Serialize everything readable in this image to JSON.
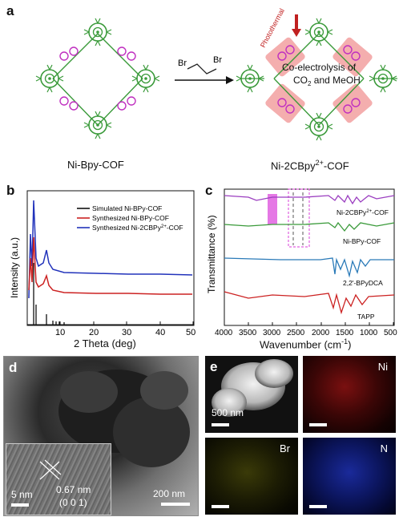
{
  "panel_a": {
    "label": "a",
    "left_name": "Ni-Bpy-COF",
    "right_name_main": "Ni-2CBpy",
    "right_name_sup": "2+",
    "right_name_tail": "-COF",
    "reagent_br1": "Br",
    "reagent_br2": "Br",
    "photothermal": "Photothermal",
    "process_line1": "Co-electrolysis of",
    "process_line2_a": "CO",
    "process_line2_sub": "2",
    "process_line2_b": " and MeOH",
    "colors": {
      "porphyrin": "#3a9a3a",
      "bipyridine": "#c030c0",
      "highlight": "#f2a0a0",
      "arrow": "#c02020"
    }
  },
  "panel_b": {
    "label": "b",
    "ylabel": "Intensity (a.u.)",
    "xlabel": "2 Theta (deg)",
    "xticks": [
      "10",
      "20",
      "30",
      "40",
      "50"
    ],
    "legend": [
      {
        "name": "Simulated Ni-BPy-COF",
        "color": "#111111"
      },
      {
        "name": "Synthesized Ni-BPy-COF",
        "color": "#cc2222"
      },
      {
        "name": "Synthesized Ni-2CBPy",
        "sup": "2+",
        "tail": "-COF",
        "color": "#2233bb"
      }
    ]
  },
  "panel_c": {
    "label": "c",
    "ylabel": "Transmittance (%)",
    "xlabel_main": "Wavenumber (cm",
    "xlabel_sup": "-1",
    "xlabel_tail": ")",
    "xticks": [
      "4000",
      "3500",
      "3000",
      "2500",
      "2000",
      "1500",
      "1000",
      "500"
    ],
    "traces": [
      {
        "name": "Ni-2CBPy",
        "sup": "2+",
        "tail": "-COF",
        "color": "#9b3ec0"
      },
      {
        "name": "Ni-BPy-COF",
        "color": "#3a9a3a"
      },
      {
        "name": "2,2'-BPyDCA",
        "color": "#2a7ab8"
      },
      {
        "name": "TAPP",
        "color": "#cc2222"
      }
    ]
  },
  "panel_d": {
    "label": "d",
    "scale_main": "200 nm",
    "scale_inset": "5 nm",
    "d_spacing": "0.67 nm",
    "plane": "(0 0 1)"
  },
  "panel_e": {
    "label": "e",
    "scale": "500 nm",
    "maps": [
      {
        "element": "Ni",
        "color": "#d11818"
      },
      {
        "element": "Br",
        "color": "#c8c820"
      },
      {
        "element": "N",
        "color": "#2233cc"
      }
    ]
  }
}
